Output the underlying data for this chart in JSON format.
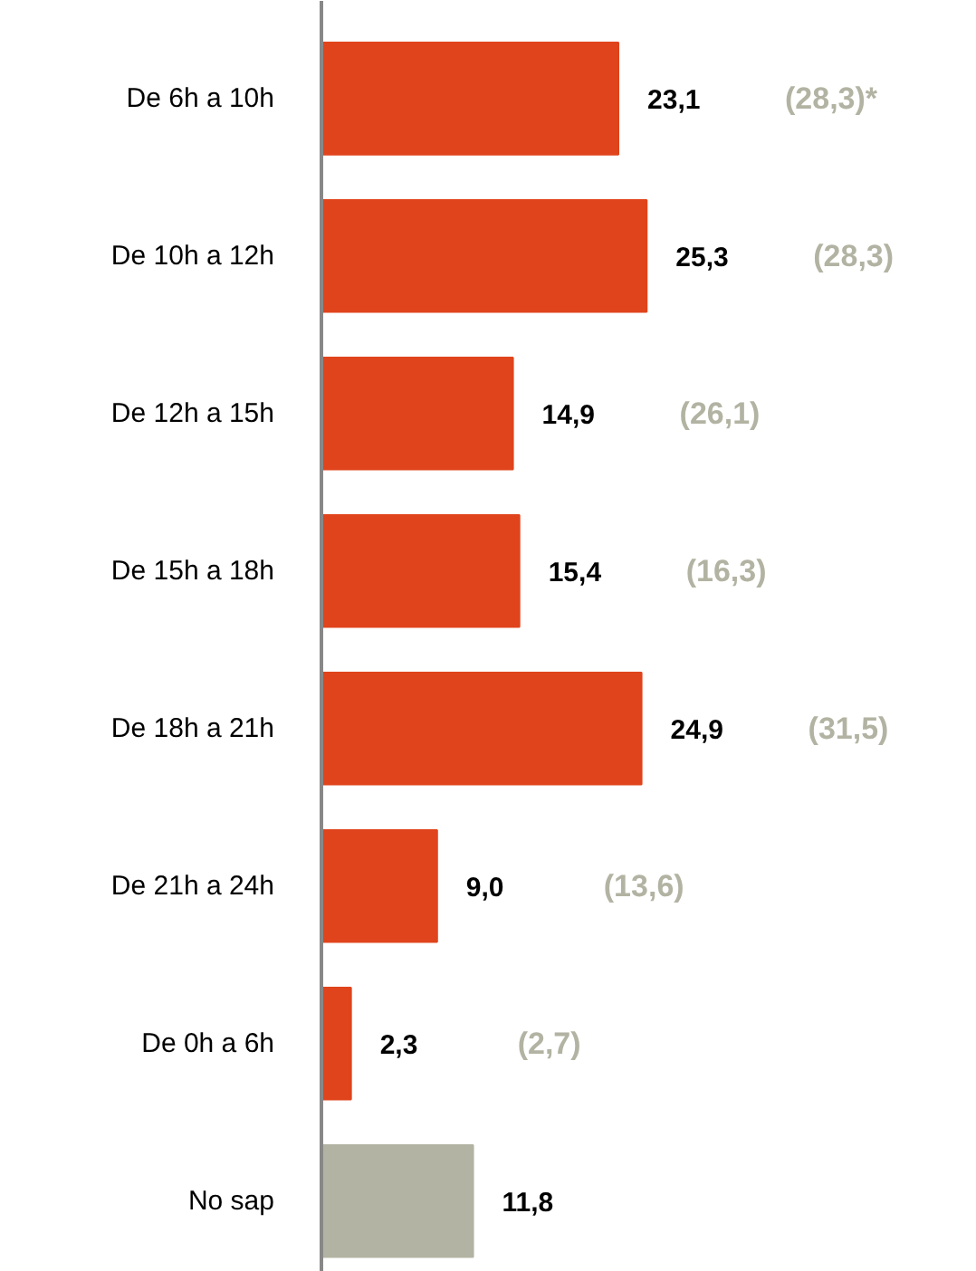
{
  "chart_data": {
    "type": "bar",
    "orientation": "horizontal",
    "categories": [
      "De 6h a 10h",
      "De 10h a 12h",
      "De 12h a 15h",
      "De 15h a 18h",
      "De 18h a 21h",
      "De 21h a 24h",
      "De 0h a 6h",
      "No sap"
    ],
    "values": [
      23.1,
      25.3,
      14.9,
      15.4,
      24.9,
      9.0,
      2.3,
      11.8
    ],
    "colors": [
      "#e0441c",
      "#e0441c",
      "#e0441c",
      "#e0441c",
      "#e0441c",
      "#e0441c",
      "#e0441c",
      "#b3b3a3"
    ],
    "value_labels": [
      "23,1",
      "25,3",
      "14,9",
      "15,4",
      "24,9",
      "9,0",
      "2,3",
      "11,8"
    ],
    "annotations": [
      "(28,3)*",
      "(28,3)",
      "(26,1)",
      "(16,3)",
      "(31,5)",
      "(13,6)",
      "(2,7)"
    ]
  }
}
